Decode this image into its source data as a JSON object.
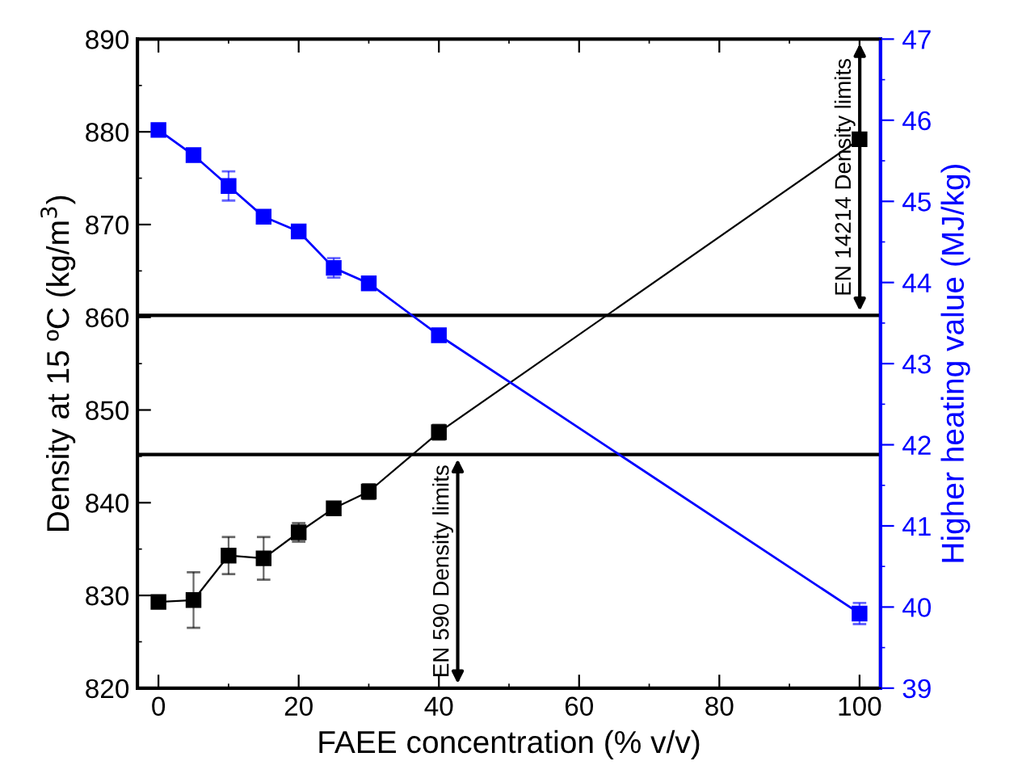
{
  "chart_data": {
    "type": "line",
    "xlabel": "FAEE concentration (% v/v)",
    "ylabel": "Density at 15 ºC (kg/m$^{3}$)",
    "y2label": "Higher heating value (MJ/kg)",
    "x": [
      0,
      5,
      10,
      15,
      20,
      25,
      30,
      40,
      100
    ],
    "series": [
      {
        "color": "#000000",
        "values": [
          829.3,
          829.5,
          834.3,
          834.0,
          836.8,
          839.4,
          841.2,
          847.6,
          879.2
        ],
        "errors": [
          null,
          3.0,
          2.0,
          2.3,
          1.0,
          null,
          0.8,
          0.8,
          null
        ]
      },
      {
        "color": "#0000ff",
        "axis": "y2",
        "values": [
          45.88,
          45.57,
          45.19,
          44.81,
          44.63,
          44.18,
          43.99,
          43.35,
          39.92
        ],
        "errors": [
          null,
          null,
          0.18,
          0.06,
          0.07,
          0.12,
          null,
          null,
          0.13
        ]
      }
    ],
    "marker": "square",
    "line_style": "solid",
    "grid": false,
    "xlim": [
      -3,
      103
    ],
    "xticks": [
      0,
      20,
      40,
      60,
      80,
      100
    ],
    "ylim": [
      820,
      890
    ],
    "yticks": [
      820,
      830,
      840,
      850,
      860,
      870,
      880,
      890
    ],
    "y2lim": [
      39,
      47
    ],
    "y2ticks": [
      39,
      40,
      41,
      42,
      43,
      44,
      45,
      46,
      47
    ],
    "ref_lines": [
      {
        "axis": "y",
        "value": 860.2,
        "color": "#000000"
      },
      {
        "axis": "y",
        "value": 845.2,
        "color": "#000000"
      }
    ],
    "annotations": [
      "EN 14214 Density limits",
      "EN 590 Density limits"
    ]
  }
}
